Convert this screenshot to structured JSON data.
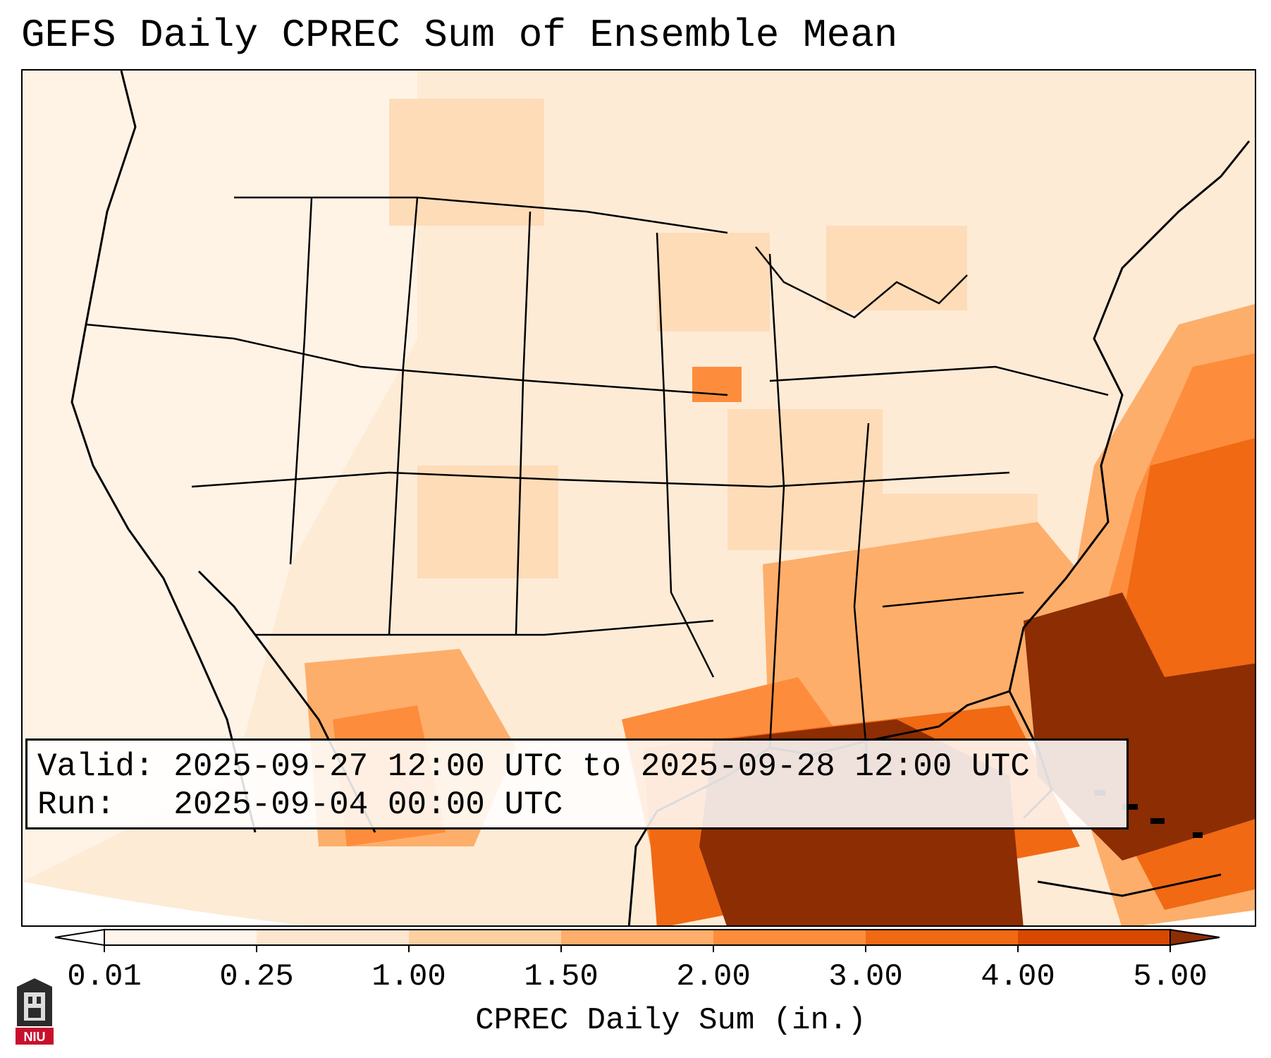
{
  "title": "GEFS Daily CPREC Sum of Ensemble Mean",
  "info": {
    "valid_line": "Valid: 2025-09-27 12:00 UTC to 2025-09-28 12:00 UTC",
    "run_line": "Run:   2025-09-04 00:00 UTC"
  },
  "colorbar": {
    "title": "CPREC Daily Sum (in.)",
    "ticks": [
      "0.01",
      "0.25",
      "1.00",
      "1.50",
      "2.00",
      "3.00",
      "4.00",
      "5.00"
    ],
    "colors": [
      "#fff5eb",
      "#fee6ce",
      "#fdd0a2",
      "#fdae6b",
      "#fd8d3c",
      "#f16913",
      "#d94801",
      "#8c2d04"
    ]
  },
  "logo": {
    "text": "NIU",
    "color": "#c8102e"
  },
  "map": {
    "precip_regions": [
      {
        "name": "gulf-of-mexico-heavy",
        "level": 7
      },
      {
        "name": "atlantic-southeast-heavy",
        "level": 7
      },
      {
        "name": "atlantic-moderate",
        "level": 5
      },
      {
        "name": "mexico-moderate",
        "level": 5
      },
      {
        "name": "iowa-light",
        "level": 4
      },
      {
        "name": "southeast-moderate",
        "level": 4
      }
    ]
  }
}
